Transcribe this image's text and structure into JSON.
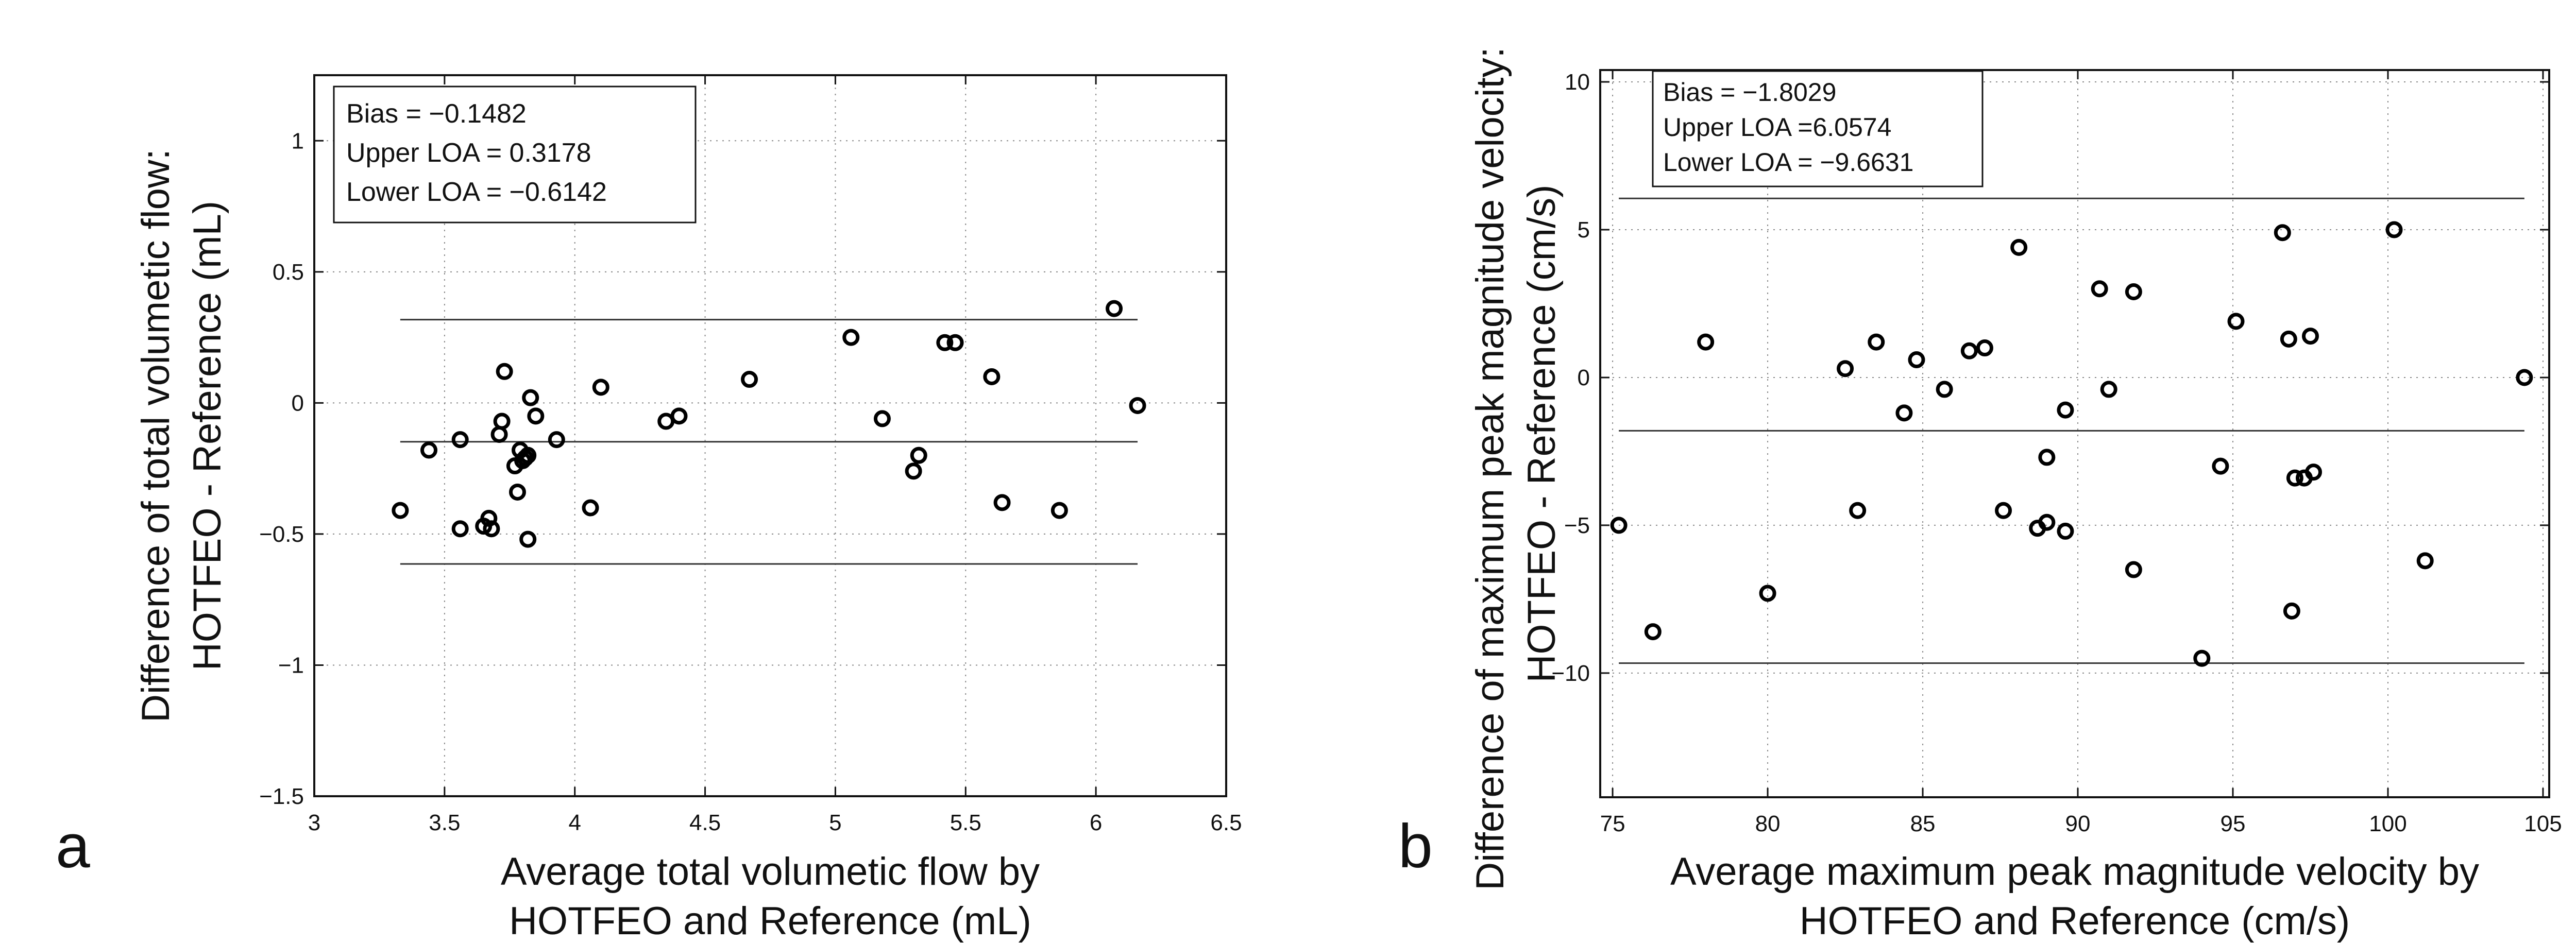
{
  "chart_data": [
    {
      "type": "scatter",
      "panel_label": "a",
      "xlabel_lines": [
        "Average total volumetic flow by",
        "HOTFEO and Reference (mL)"
      ],
      "ylabel_lines": [
        "Difference of total volumetic flow:",
        "HOTFEO  - Reference (mL)"
      ],
      "xlim": [
        3,
        6.5
      ],
      "ylim": [
        -1.5,
        1.25
      ],
      "xticks": [
        3,
        3.5,
        4,
        4.5,
        5,
        5.5,
        6,
        6.5
      ],
      "xtick_labels": [
        "3",
        "3.5",
        "4",
        "4.5",
        "5",
        "5.5",
        "6",
        "6.5"
      ],
      "yticks": [
        -1.5,
        -1,
        -0.5,
        0,
        0.5,
        1
      ],
      "ytick_labels": [
        "−1.5",
        "−1",
        "−0.5",
        "0",
        "0.5",
        "1"
      ],
      "grid": true,
      "stats": {
        "bias": -0.1482,
        "upper_loa": 0.3178,
        "lower_loa": -0.6142
      },
      "stats_text": [
        "Bias = −0.1482",
        "Upper LOA = 0.3178",
        "Lower LOA = −0.6142"
      ],
      "line_x_range": [
        3.33,
        6.16
      ],
      "points": [
        [
          3.33,
          -0.41
        ],
        [
          3.44,
          -0.18
        ],
        [
          3.56,
          -0.48
        ],
        [
          3.56,
          -0.14
        ],
        [
          3.65,
          -0.47
        ],
        [
          3.67,
          -0.44
        ],
        [
          3.68,
          -0.48
        ],
        [
          3.71,
          -0.12
        ],
        [
          3.72,
          -0.07
        ],
        [
          3.73,
          0.12
        ],
        [
          3.77,
          -0.24
        ],
        [
          3.78,
          -0.34
        ],
        [
          3.79,
          -0.18
        ],
        [
          3.8,
          -0.22
        ],
        [
          3.81,
          -0.21
        ],
        [
          3.82,
          -0.2
        ],
        [
          3.82,
          -0.52
        ],
        [
          3.83,
          0.02
        ],
        [
          3.85,
          -0.05
        ],
        [
          3.93,
          -0.14
        ],
        [
          4.06,
          -0.4
        ],
        [
          4.1,
          0.06
        ],
        [
          4.35,
          -0.07
        ],
        [
          4.4,
          -0.05
        ],
        [
          4.67,
          0.09
        ],
        [
          5.06,
          0.25
        ],
        [
          5.18,
          -0.06
        ],
        [
          5.3,
          -0.26
        ],
        [
          5.32,
          -0.2
        ],
        [
          5.42,
          0.23
        ],
        [
          5.46,
          0.23
        ],
        [
          5.6,
          0.1
        ],
        [
          5.64,
          -0.38
        ],
        [
          5.86,
          -0.41
        ],
        [
          6.07,
          0.36
        ],
        [
          6.16,
          -0.01
        ]
      ]
    },
    {
      "type": "scatter",
      "panel_label": "b",
      "xlabel_lines": [
        "Average maximum peak magnitude velocity by",
        "HOTFEO and Reference (cm/s)"
      ],
      "ylabel_lines": [
        "Difference of maximum peak magnitude velocity:",
        "HOTFEO - Reference (cm/s)"
      ],
      "xlim": [
        74.6,
        105.2
      ],
      "ylim": [
        -14.2,
        10.4
      ],
      "xticks": [
        75,
        80,
        85,
        90,
        95,
        100,
        105
      ],
      "xtick_labels": [
        "75",
        "80",
        "85",
        "90",
        "95",
        "100",
        "105"
      ],
      "yticks": [
        -10,
        -5,
        0,
        5,
        10
      ],
      "ytick_labels": [
        "−10",
        "−5",
        "0",
        "5",
        "10"
      ],
      "grid": true,
      "stats": {
        "bias": -1.8029,
        "upper_loa": 6.0574,
        "lower_loa": -9.6631
      },
      "stats_text": [
        "Bias = −1.8029",
        "Upper LOA =6.0574",
        "Lower LOA = −9.6631"
      ],
      "line_x_range": [
        75.2,
        104.4
      ],
      "points": [
        [
          75.2,
          -5.0
        ],
        [
          76.3,
          -8.6
        ],
        [
          78.0,
          1.2
        ],
        [
          80.0,
          -7.3
        ],
        [
          82.5,
          0.3
        ],
        [
          82.9,
          -4.5
        ],
        [
          83.5,
          1.2
        ],
        [
          84.4,
          -1.2
        ],
        [
          84.8,
          0.6
        ],
        [
          85.7,
          -0.4
        ],
        [
          86.5,
          0.9
        ],
        [
          87.0,
          1.0
        ],
        [
          87.6,
          -4.5
        ],
        [
          88.1,
          4.4
        ],
        [
          88.7,
          -5.1
        ],
        [
          89.0,
          -2.7
        ],
        [
          89.0,
          -4.9
        ],
        [
          89.6,
          -1.1
        ],
        [
          89.6,
          -5.2
        ],
        [
          90.7,
          3.0
        ],
        [
          91.0,
          -0.4
        ],
        [
          91.8,
          -6.5
        ],
        [
          91.8,
          2.9
        ],
        [
          94.0,
          -9.5
        ],
        [
          94.6,
          -3.0
        ],
        [
          95.1,
          1.9
        ],
        [
          96.6,
          4.9
        ],
        [
          96.8,
          1.3
        ],
        [
          96.9,
          -7.9
        ],
        [
          97.0,
          -3.4
        ],
        [
          97.3,
          -3.4
        ],
        [
          97.5,
          1.4
        ],
        [
          97.6,
          -3.2
        ],
        [
          100.2,
          5.0
        ],
        [
          101.2,
          -6.2
        ],
        [
          104.4,
          0.0
        ]
      ]
    }
  ]
}
